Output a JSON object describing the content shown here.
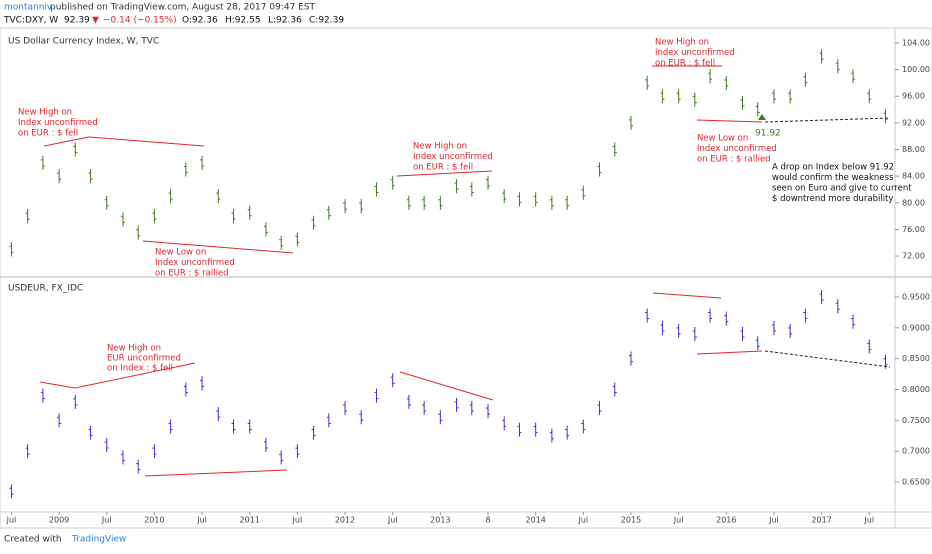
{
  "header": {
    "author": "montanniv",
    "published": "published on TradingView.com, August 28, 2017 09:47 EST",
    "symbol": "TVC:DXY, W",
    "last": "92.39",
    "change": "−0.14 (−0.15%)",
    "open": "O:92.36",
    "high": "H:92.55",
    "low": "L:92.36",
    "close": "C:92.39"
  },
  "annotations": {
    "top": [
      [
        "New High on",
        "Index unconfirmed",
        "on EUR : $ fell"
      ],
      [
        "New Low on",
        "Index unconfirmed",
        "on EUR : $ rallied"
      ],
      [
        "New High on",
        "Index unconfirmed",
        "on EUR : $ fell"
      ],
      [
        "New High on",
        "Index unconfirmed",
        "on EUR : $ fell"
      ],
      [
        "New Low on",
        "Index unconfirmed",
        "on EUR : $ rallied"
      ],
      [
        "A drop on Index below 91.92",
        "would confirm the weakness",
        "seen on Euro and give to current",
        "$ downtrend more durability"
      ]
    ],
    "low_label": "91.92",
    "bottom": [
      [
        "New High on",
        "EUR unconfirmed",
        "on Index : $ fell"
      ]
    ]
  },
  "footer": {
    "created": "Created with",
    "brand": "TradingView"
  },
  "chart_data": [
    {
      "type": "ohlc",
      "title": "US Dollar Currency Index, W, TVC",
      "color": "#3f7a1e",
      "x": [
        2008.5,
        2008.67,
        2008.83,
        2009.0,
        2009.17,
        2009.33,
        2009.5,
        2009.67,
        2009.83,
        2010.0,
        2010.17,
        2010.33,
        2010.5,
        2010.67,
        2010.83,
        2011.0,
        2011.17,
        2011.33,
        2011.5,
        2011.67,
        2011.83,
        2012.0,
        2012.17,
        2012.33,
        2012.5,
        2012.67,
        2012.83,
        2013.0,
        2013.17,
        2013.33,
        2013.5,
        2013.67,
        2013.83,
        2014.0,
        2014.17,
        2014.33,
        2014.5,
        2014.67,
        2014.83,
        2015.0,
        2015.17,
        2015.33,
        2015.5,
        2015.67,
        2015.83,
        2016.0,
        2016.17,
        2016.33,
        2016.5,
        2016.67,
        2016.83,
        2017.0,
        2017.17,
        2017.33,
        2017.5,
        2017.67
      ],
      "values": [
        73,
        78,
        86,
        84,
        88,
        84,
        80,
        77.5,
        75.5,
        78,
        81,
        85,
        86,
        81,
        78,
        78.5,
        76,
        74,
        74.5,
        77,
        78.5,
        79.5,
        79.5,
        82,
        83,
        80,
        80,
        80,
        82.5,
        82,
        83,
        81,
        80.5,
        80.5,
        80,
        80,
        81.5,
        85,
        88,
        92,
        98,
        96,
        96,
        95.5,
        99,
        98,
        95,
        94,
        96,
        96,
        98.5,
        102,
        100.5,
        99,
        96,
        93
      ],
      "xlim": [
        2008.38,
        2017.77
      ],
      "ylim": [
        69.6,
        105.95
      ],
      "yticks": [
        {
          "value": 72,
          "label": "72.00"
        },
        {
          "value": 76,
          "label": "76.00"
        },
        {
          "value": 80,
          "label": "80.00"
        },
        {
          "value": 84,
          "label": "84.00"
        },
        {
          "value": 88,
          "label": "88.00"
        },
        {
          "value": 92,
          "label": "92.00"
        },
        {
          "value": 96,
          "label": "96.00"
        },
        {
          "value": 100,
          "label": "100.00"
        },
        {
          "value": 104,
          "label": "104.00"
        }
      ]
    },
    {
      "type": "ohlc",
      "title": "USDEUR, FX_IDC",
      "color": "#3535d0",
      "x": [
        2008.5,
        2008.67,
        2008.83,
        2009.0,
        2009.17,
        2009.33,
        2009.5,
        2009.67,
        2009.83,
        2010.0,
        2010.17,
        2010.33,
        2010.5,
        2010.67,
        2010.83,
        2011.0,
        2011.17,
        2011.33,
        2011.5,
        2011.67,
        2011.83,
        2012.0,
        2012.17,
        2012.33,
        2012.5,
        2012.67,
        2012.83,
        2013.0,
        2013.17,
        2013.33,
        2013.5,
        2013.67,
        2013.83,
        2014.0,
        2014.17,
        2014.33,
        2014.5,
        2014.67,
        2014.83,
        2015.0,
        2015.17,
        2015.33,
        2015.5,
        2015.67,
        2015.83,
        2016.0,
        2016.17,
        2016.33,
        2016.5,
        2016.67,
        2016.83,
        2017.0,
        2017.17,
        2017.33,
        2017.5,
        2017.67
      ],
      "values": [
        0.635,
        0.7,
        0.79,
        0.75,
        0.78,
        0.73,
        0.71,
        0.69,
        0.675,
        0.7,
        0.74,
        0.8,
        0.81,
        0.76,
        0.74,
        0.74,
        0.71,
        0.69,
        0.7,
        0.73,
        0.75,
        0.77,
        0.755,
        0.79,
        0.815,
        0.78,
        0.77,
        0.755,
        0.775,
        0.77,
        0.765,
        0.745,
        0.735,
        0.735,
        0.725,
        0.73,
        0.74,
        0.77,
        0.8,
        0.85,
        0.92,
        0.9,
        0.895,
        0.89,
        0.92,
        0.915,
        0.89,
        0.875,
        0.9,
        0.895,
        0.92,
        0.95,
        0.935,
        0.91,
        0.87,
        0.845
      ],
      "xlim": [
        2008.38,
        2017.77
      ],
      "ylim": [
        0.6014,
        0.9743
      ],
      "yticks": [
        {
          "value": 0.65,
          "label": "0.6500"
        },
        {
          "value": 0.7,
          "label": "0.7000"
        },
        {
          "value": 0.75,
          "label": "0.7500"
        },
        {
          "value": 0.8,
          "label": "0.8000"
        },
        {
          "value": 0.85,
          "label": "0.8500"
        },
        {
          "value": 0.9,
          "label": "0.9000"
        },
        {
          "value": 0.95,
          "label": "0.9500"
        }
      ],
      "xticks": [
        {
          "value": 2008.5,
          "label": "Jul"
        },
        {
          "value": 2009,
          "label": "2009"
        },
        {
          "value": 2009.5,
          "label": "Jul"
        },
        {
          "value": 2010,
          "label": "2010"
        },
        {
          "value": 2010.5,
          "label": "Jul"
        },
        2011,
        {
          "value": 2011.5,
          "label": "Jul"
        },
        2012,
        {
          "value": 2012.5,
          "label": "Jul"
        },
        2013,
        {
          "value": 2013.5,
          "label": "8"
        },
        2014,
        {
          "value": 2014.5,
          "label": "Jul"
        },
        2015,
        {
          "value": 2015.5,
          "label": "Jul"
        },
        2016,
        {
          "value": 2016.5,
          "label": "Jul"
        },
        2017,
        {
          "value": 2017.5,
          "label": "Jul"
        }
      ]
    }
  ]
}
